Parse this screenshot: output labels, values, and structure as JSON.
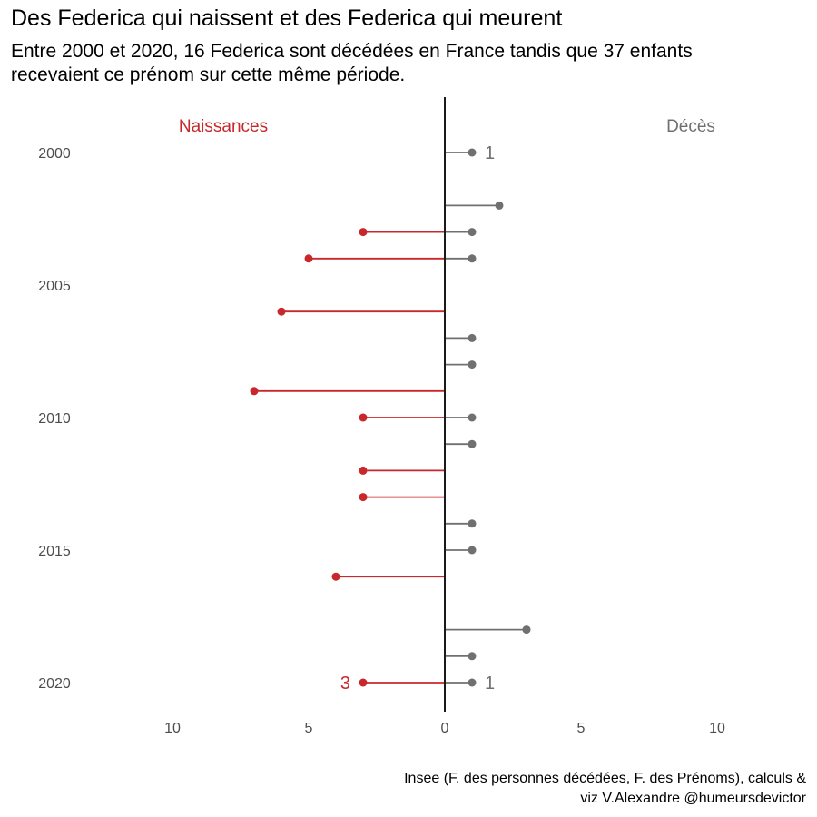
{
  "title": "Des Federica qui naissent et des Federica qui meurent",
  "subtitle": "Entre 2000 et 2020, 16 Federica sont décédées en France tandis que 37 enfants recevaient ce prénom sur cette même période.",
  "caption_line1": "Insee (F. des personnes décédées, F. des Prénoms), calculs &",
  "caption_line2": "viz V.Alexandre @humeursdevictor",
  "colors": {
    "naissances": "#c8272b",
    "deces": "#707070",
    "axis": "#1a1a1a"
  },
  "chart_data": {
    "type": "lollipop",
    "side_labels": {
      "left": "Naissances",
      "right": "Décès"
    },
    "y_tick_labels": [
      "2000",
      "2005",
      "2010",
      "2015",
      "2020"
    ],
    "x_tick_labels": [
      "10",
      "5",
      "0",
      "5",
      "10"
    ],
    "xlim": [
      -12.5,
      12.5
    ],
    "ylim": [
      2000,
      2020
    ],
    "series": [
      {
        "name": "Naissances",
        "points": [
          {
            "year": 2003,
            "value": 3
          },
          {
            "year": 2004,
            "value": 5
          },
          {
            "year": 2006,
            "value": 6
          },
          {
            "year": 2009,
            "value": 7
          },
          {
            "year": 2010,
            "value": 3
          },
          {
            "year": 2012,
            "value": 3
          },
          {
            "year": 2013,
            "value": 3
          },
          {
            "year": 2016,
            "value": 4
          },
          {
            "year": 2020,
            "value": 3
          }
        ]
      },
      {
        "name": "Décès",
        "points": [
          {
            "year": 2000,
            "value": 1
          },
          {
            "year": 2002,
            "value": 2
          },
          {
            "year": 2003,
            "value": 1
          },
          {
            "year": 2004,
            "value": 1
          },
          {
            "year": 2007,
            "value": 1
          },
          {
            "year": 2008,
            "value": 1
          },
          {
            "year": 2010,
            "value": 1
          },
          {
            "year": 2011,
            "value": 1
          },
          {
            "year": 2014,
            "value": 1
          },
          {
            "year": 2015,
            "value": 1
          },
          {
            "year": 2018,
            "value": 3
          },
          {
            "year": 2019,
            "value": 1
          },
          {
            "year": 2020,
            "value": 1
          }
        ]
      }
    ],
    "annotations": [
      {
        "series": "Naissances",
        "year": 2020,
        "text": "3"
      },
      {
        "series": "Décès",
        "year": 2000,
        "text": "1"
      },
      {
        "series": "Décès",
        "year": 2020,
        "text": "1"
      }
    ],
    "grid": false
  }
}
